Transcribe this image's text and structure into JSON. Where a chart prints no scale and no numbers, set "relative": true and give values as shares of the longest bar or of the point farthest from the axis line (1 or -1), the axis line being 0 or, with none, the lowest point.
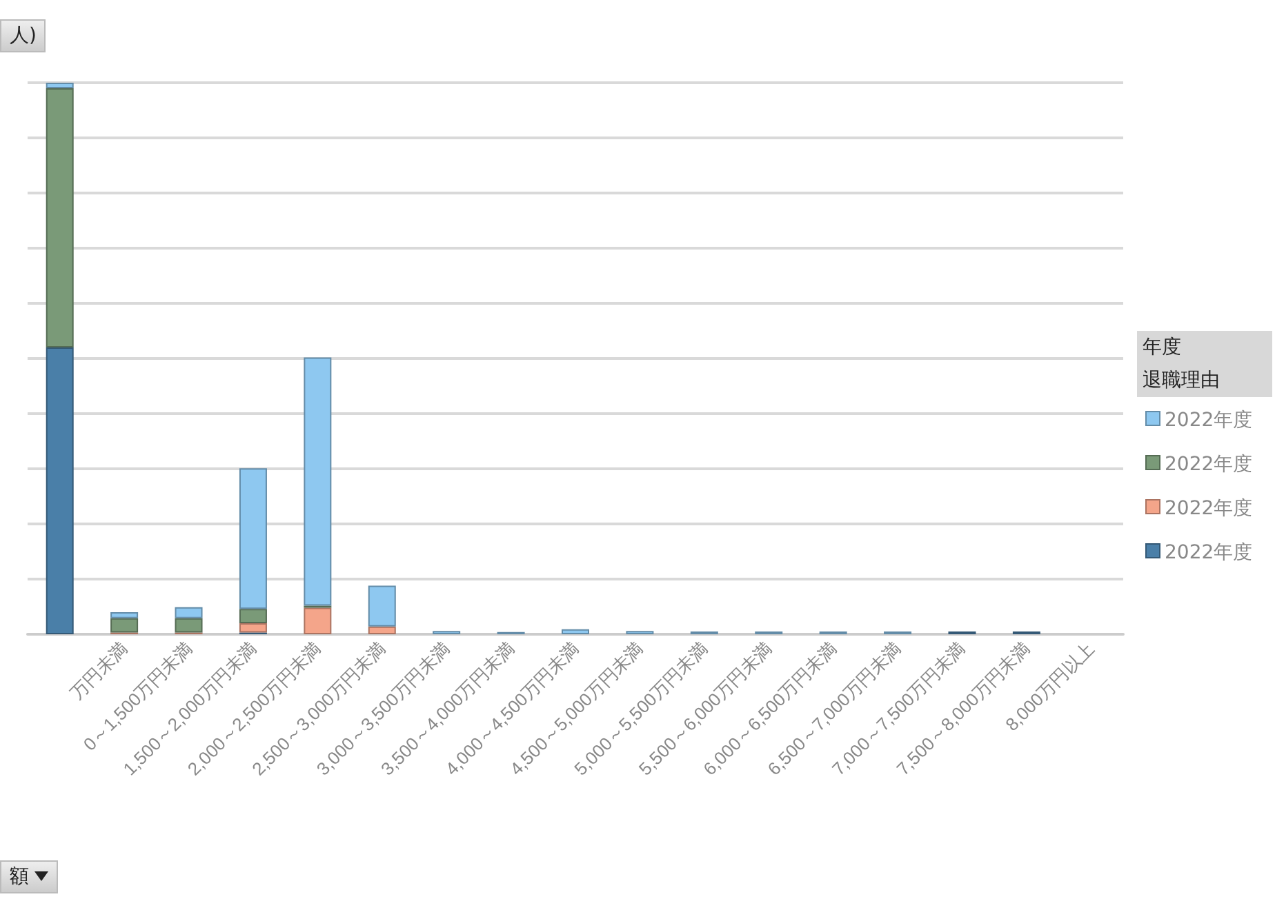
{
  "chart_data": {
    "type": "bar",
    "relative": true,
    "stacked": true,
    "grid": "y",
    "legend_title": "年度",
    "annotations": [
      "人)",
      "退職理由",
      "額",
      "2022年度",
      "2022年度",
      "2022年度",
      "2022年度"
    ],
    "categories": [
      null,
      "万円未満",
      "0～1,500万円未満",
      "1,500～2,000万円未満",
      "2,000～2,500万円未満",
      "2,500～3,000万円未満",
      "3,000～3,500万円未満",
      "3,500～4,000万円未満",
      "4,000～4,500万円未満",
      "4,500～5,000万円未満",
      "5,000～5,500万円未満",
      "5,500～6,000万円未満",
      "6,000～6,500万円未満",
      "6,500～7,000万円未満",
      "7,000～7,500万円未満",
      "7,500～8,000万円未満",
      "8,000万円以上"
    ],
    "series": [
      {
        "color": "#4a7fa8",
        "values": [
          0.52,
          null,
          null,
          0.003,
          null,
          null,
          null,
          null,
          null,
          null,
          null,
          null,
          null,
          null,
          0.005,
          0.005,
          null
        ]
      },
      {
        "color": "#f4a58a",
        "values": [
          null,
          0.003,
          0.003,
          0.017,
          0.048,
          0.014,
          null,
          null,
          null,
          null,
          null,
          null,
          null,
          null,
          null,
          null,
          null
        ]
      },
      {
        "color": "#7a9a78",
        "values": [
          0.47,
          0.026,
          0.026,
          0.026,
          0.004,
          null,
          null,
          null,
          null,
          null,
          null,
          null,
          null,
          null,
          null,
          null,
          null
        ]
      },
      {
        "color": "#8ec8f0",
        "values": [
          0.01,
          0.011,
          0.02,
          0.255,
          0.45,
          0.074,
          0.006,
          0.004,
          0.009,
          0.006,
          0.005,
          0.005,
          0.005,
          0.005,
          null,
          null,
          null
        ]
      }
    ]
  }
}
